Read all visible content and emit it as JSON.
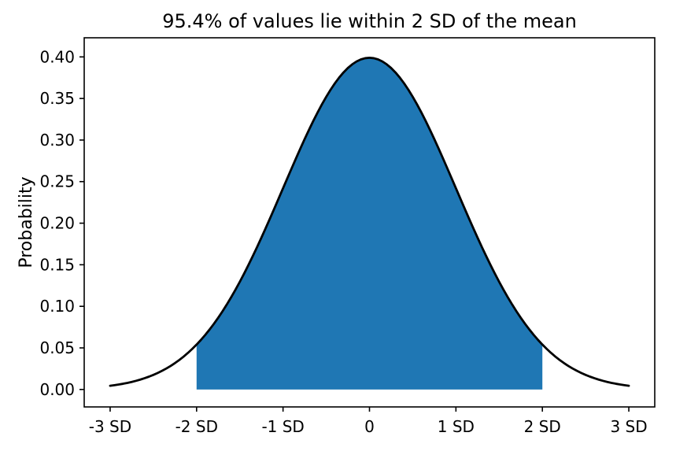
{
  "chart_data": {
    "type": "area",
    "title": "95.4% of values lie within 2 SD of the mean",
    "xlabel": "",
    "ylabel": "Probability",
    "xlim": [
      -3.3,
      3.3
    ],
    "ylim": [
      -0.021,
      0.423
    ],
    "grid": false,
    "legend": false,
    "x_ticks": [
      -3,
      -2,
      -1,
      0,
      1,
      2,
      3
    ],
    "x_tick_labels": [
      "-3 SD",
      "-2 SD",
      "-1 SD",
      "0",
      "1 SD",
      "2 SD",
      "3 SD"
    ],
    "y_ticks": [
      0.0,
      0.05,
      0.1,
      0.15,
      0.2,
      0.25,
      0.3,
      0.35,
      0.4
    ],
    "y_tick_labels": [
      "0.00",
      "0.05",
      "0.10",
      "0.15",
      "0.20",
      "0.25",
      "0.30",
      "0.35",
      "0.40"
    ],
    "distribution": {
      "name": "standard-normal",
      "mean": 0,
      "sd": 1,
      "peak_density": 0.3989
    },
    "curve_x_range": [
      -3,
      3
    ],
    "curve_samples": [
      {
        "x": -3.0,
        "y": 0.0044
      },
      {
        "x": -2.5,
        "y": 0.0175
      },
      {
        "x": -2.0,
        "y": 0.054
      },
      {
        "x": -1.5,
        "y": 0.1295
      },
      {
        "x": -1.0,
        "y": 0.242
      },
      {
        "x": -0.5,
        "y": 0.3521
      },
      {
        "x": 0.0,
        "y": 0.3989
      },
      {
        "x": 0.5,
        "y": 0.3521
      },
      {
        "x": 1.0,
        "y": 0.242
      },
      {
        "x": 1.5,
        "y": 0.1295
      },
      {
        "x": 2.0,
        "y": 0.054
      },
      {
        "x": 2.5,
        "y": 0.0175
      },
      {
        "x": 3.0,
        "y": 0.0044
      }
    ],
    "shaded_region": {
      "from_sd": -2,
      "to_sd": 2,
      "coverage_label": "95.4%"
    },
    "colors": {
      "fill": "#1f77b4",
      "curve": "#000000",
      "spine": "#000000",
      "background": "#ffffff"
    }
  }
}
